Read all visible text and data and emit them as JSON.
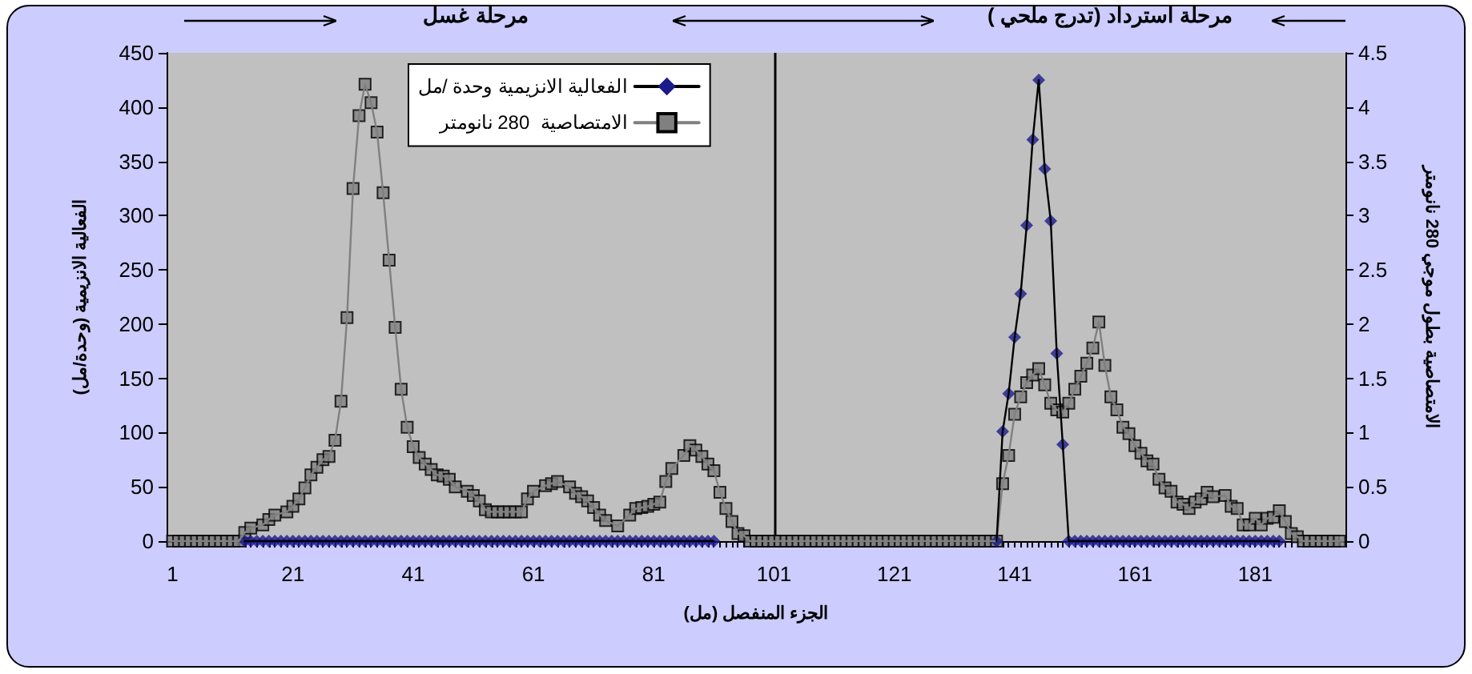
{
  "chart_data": {
    "type": "line",
    "xlabel": "الجزء المنفصل (مل)",
    "ylabel": "الفعالية الانزيمية (وحدة/مل)",
    "y2label": "الامتصاصية بطول موجي 280 نانومتر",
    "annotations": [
      "مرحلة غسل",
      "مرحلة استرداد (تدرج ملحي )"
    ],
    "xlim": [
      0,
      196
    ],
    "xticks": [
      1,
      21,
      41,
      61,
      81,
      101,
      121,
      141,
      161,
      181
    ],
    "ylim": [
      0,
      450
    ],
    "yticks": [
      0,
      50,
      100,
      150,
      200,
      250,
      300,
      350,
      400,
      450
    ],
    "y2lim": [
      0,
      4.5
    ],
    "y2ticks": [
      0,
      0.5,
      1,
      1.5,
      2,
      2.5,
      3,
      3.5,
      4,
      4.5
    ],
    "grid": false,
    "legend": "top",
    "ref_lines": [
      {
        "axis": "x",
        "value": 101,
        "color": "#000000"
      }
    ],
    "series": [
      {
        "name": "الفعالية الانزيمية وحدة /مل",
        "color": "#1a1a8c",
        "marker": "diamond",
        "x": [
          13,
          14,
          15,
          16,
          17,
          18,
          19,
          20,
          21,
          22,
          23,
          24,
          25,
          26,
          27,
          28,
          29,
          30,
          31,
          32,
          33,
          34,
          35,
          36,
          37,
          38,
          39,
          40,
          41,
          42,
          43,
          44,
          45,
          46,
          47,
          48,
          49,
          50,
          51,
          52,
          53,
          54,
          55,
          56,
          57,
          58,
          59,
          60,
          61,
          62,
          63,
          64,
          65,
          66,
          67,
          68,
          69,
          70,
          71,
          72,
          73,
          74,
          75,
          76,
          77,
          78,
          79,
          80,
          81,
          82,
          83,
          84,
          85,
          86,
          87,
          88,
          89,
          90,
          91,
          115,
          138,
          139,
          140,
          141,
          142,
          143,
          144,
          145,
          146,
          147,
          148,
          149,
          150,
          151,
          152,
          153,
          154,
          155,
          156,
          157,
          158,
          159,
          160,
          161,
          162,
          163,
          164,
          165,
          166,
          167,
          168,
          169,
          170,
          171,
          172,
          173,
          174,
          175,
          176,
          177,
          178,
          179,
          180,
          181,
          182,
          183,
          184,
          185
        ],
        "values": [
          0,
          0,
          0,
          0,
          0,
          0,
          0,
          0,
          0,
          0,
          0,
          0,
          0,
          0,
          0,
          0,
          0,
          0,
          0,
          0,
          0,
          0,
          0,
          0,
          0,
          0,
          0,
          0,
          0,
          0,
          0,
          0,
          0,
          0,
          0,
          0,
          0,
          0,
          0,
          0,
          0,
          0,
          0,
          0,
          0,
          0,
          0,
          0,
          0,
          0,
          0,
          0,
          0,
          0,
          0,
          0,
          0,
          0,
          0,
          0,
          0,
          0,
          0,
          0,
          0,
          0,
          0,
          0,
          0,
          0,
          0,
          0,
          0,
          0,
          0,
          0,
          0,
          0,
          0,
          null,
          0,
          101,
          136,
          188,
          228,
          291,
          370,
          425,
          343,
          295,
          173,
          89,
          0,
          0,
          0,
          0,
          0,
          0,
          0,
          0,
          0,
          0,
          0,
          0,
          0,
          0,
          0,
          0,
          0,
          0,
          0,
          0,
          0,
          0,
          0,
          0,
          0,
          0,
          0,
          0,
          0,
          0,
          0,
          0,
          0,
          0,
          0,
          0
        ]
      },
      {
        "name": "الامتصاصية  280 نانومتر",
        "color": "#808080",
        "marker": "square",
        "axis": "y2",
        "x": [
          1,
          2,
          3,
          4,
          5,
          6,
          7,
          8,
          9,
          10,
          11,
          12,
          13,
          14,
          16,
          17,
          18,
          20,
          21,
          22,
          23,
          24,
          25,
          26,
          27,
          28,
          29,
          30,
          31,
          32,
          33,
          34,
          35,
          36,
          37,
          38,
          39,
          40,
          41,
          42,
          43,
          44,
          45,
          46,
          47,
          48,
          50,
          51,
          52,
          53,
          54,
          55,
          56,
          57,
          58,
          59,
          60,
          61,
          63,
          64,
          65,
          67,
          68,
          69,
          70,
          71,
          72,
          73,
          75,
          77,
          78,
          79,
          80,
          81,
          82,
          83,
          84,
          86,
          87,
          88,
          89,
          90,
          91,
          92,
          93,
          94,
          95,
          96,
          97,
          98,
          99,
          100,
          101,
          102,
          103,
          104,
          105,
          106,
          107,
          108,
          109,
          110,
          111,
          112,
          113,
          114,
          115,
          116,
          117,
          118,
          119,
          120,
          121,
          122,
          123,
          124,
          125,
          126,
          127,
          128,
          129,
          130,
          131,
          132,
          133,
          134,
          135,
          136,
          137,
          138,
          139,
          140,
          141,
          142,
          143,
          144,
          145,
          146,
          147,
          148,
          149,
          150,
          151,
          152,
          153,
          154,
          155,
          156,
          157,
          158,
          159,
          160,
          161,
          162,
          163,
          164,
          165,
          166,
          167,
          168,
          169,
          170,
          171,
          172,
          173,
          174,
          176,
          177,
          178,
          179,
          180,
          181,
          182,
          183,
          184,
          185,
          186,
          187,
          188,
          189,
          190,
          191,
          192,
          193,
          194,
          195
        ],
        "values": [
          0,
          0,
          0,
          0,
          0,
          0,
          0,
          0,
          0,
          0,
          0,
          0,
          0.08,
          0.12,
          0.15,
          0.2,
          0.24,
          0.27,
          0.32,
          0.39,
          0.49,
          0.61,
          0.68,
          0.75,
          0.78,
          0.93,
          1.29,
          2.06,
          3.25,
          3.92,
          4.21,
          4.04,
          3.77,
          3.21,
          2.59,
          1.97,
          1.4,
          1.05,
          0.87,
          0.77,
          0.71,
          0.66,
          0.61,
          0.6,
          0.57,
          0.5,
          0.46,
          0.42,
          0.37,
          0.29,
          0.27,
          0.27,
          0.27,
          0.27,
          0.27,
          0.27,
          0.39,
          0.46,
          0.51,
          0.53,
          0.55,
          0.5,
          0.44,
          0.41,
          0.37,
          0.31,
          0.24,
          0.19,
          0.14,
          0.24,
          0.3,
          0.31,
          0.32,
          0.34,
          0.36,
          0.55,
          0.67,
          0.79,
          0.88,
          0.84,
          0.78,
          0.71,
          0.65,
          0.45,
          0.3,
          0.18,
          0.07,
          0.05,
          0,
          0,
          0,
          0,
          0,
          0,
          0,
          0,
          0,
          0,
          0,
          0,
          0,
          0,
          0,
          0,
          0,
          0,
          0,
          0,
          0,
          0,
          0,
          0,
          0,
          0,
          0,
          0,
          0,
          0,
          0,
          0,
          0,
          0,
          0,
          0,
          0,
          0,
          0,
          0,
          0,
          0,
          0.53,
          0.79,
          1.17,
          1.33,
          1.46,
          1.53,
          1.59,
          1.44,
          1.27,
          1.21,
          1.19,
          1.27,
          1.4,
          1.52,
          1.64,
          1.78,
          2.02,
          1.62,
          1.33,
          1.21,
          1.05,
          0.99,
          0.88,
          0.81,
          0.74,
          0.71,
          0.57,
          0.49,
          0.46,
          0.36,
          0.34,
          0.3,
          0.36,
          0.39,
          0.45,
          0.41,
          0.42,
          0.32,
          0.3,
          0.15,
          0.15,
          0.21,
          0.15,
          0.21,
          0.22,
          0.28,
          0.18,
          0.07,
          0.04,
          0,
          0,
          0,
          0,
          0,
          0,
          0
        ]
      }
    ]
  }
}
